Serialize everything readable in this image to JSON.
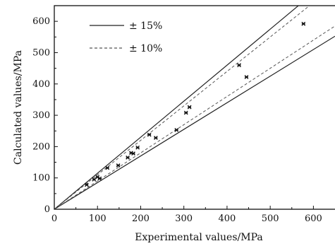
{
  "chart_data": {
    "type": "scatter",
    "title": "",
    "xlabel": "Experimental values/MPa",
    "ylabel": "Calculated values/MPa",
    "xlim": [
      0,
      650
    ],
    "ylim": [
      0,
      650
    ],
    "xticks": [
      0,
      100,
      200,
      300,
      400,
      500,
      600
    ],
    "yticks": [
      0,
      100,
      200,
      300,
      400,
      500,
      600
    ],
    "grid": false,
    "legend_position": "top-left",
    "legend": [
      {
        "label": "± 15%",
        "style": "solid"
      },
      {
        "label": "± 10%",
        "style": "dashed"
      }
    ],
    "bands": [
      {
        "name": "± 15%",
        "factors": [
          0.85,
          1.15
        ],
        "style": "solid"
      },
      {
        "name": "± 10%",
        "factors": [
          0.9,
          1.1
        ],
        "style": "dashed"
      }
    ],
    "points": [
      {
        "x": 75,
        "y": 78
      },
      {
        "x": 92,
        "y": 95
      },
      {
        "x": 100,
        "y": 103
      },
      {
        "x": 105,
        "y": 98
      },
      {
        "x": 123,
        "y": 132
      },
      {
        "x": 148,
        "y": 140
      },
      {
        "x": 170,
        "y": 165
      },
      {
        "x": 178,
        "y": 180
      },
      {
        "x": 183,
        "y": 178
      },
      {
        "x": 193,
        "y": 197
      },
      {
        "x": 220,
        "y": 238
      },
      {
        "x": 235,
        "y": 228
      },
      {
        "x": 283,
        "y": 253
      },
      {
        "x": 305,
        "y": 308
      },
      {
        "x": 313,
        "y": 326
      },
      {
        "x": 428,
        "y": 460
      },
      {
        "x": 445,
        "y": 422
      },
      {
        "x": 577,
        "y": 592
      }
    ],
    "colors": {
      "axis": "#111111",
      "line": "#222222",
      "point": "#111111"
    }
  }
}
